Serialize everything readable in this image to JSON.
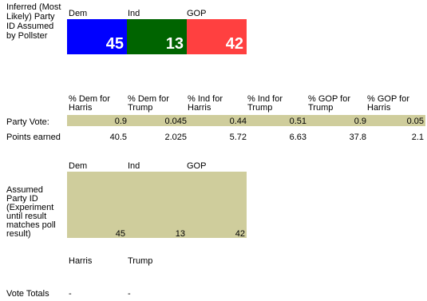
{
  "inferred_label": "Inferred (Most Likely) Party ID Assumed by Pollster",
  "parties": [
    {
      "label": "Dem",
      "value": "45",
      "color": "#0000ff"
    },
    {
      "label": "Ind",
      "value": "13",
      "color": "#006400"
    },
    {
      "label": "GOP",
      "value": "42",
      "color": "#ff4040"
    }
  ],
  "vote_headers": [
    "% Dem for Harris",
    "% Dem for Trump",
    "% Ind for Harris",
    "% Ind for Trump",
    "% GOP for Trump",
    "% GOP for Harris"
  ],
  "party_vote": {
    "label": "Party Vote:",
    "values": [
      "0.9",
      "0.045",
      "0.44",
      "0.51",
      "0.9",
      "0.05"
    ]
  },
  "points_earned": {
    "label": "Points earned",
    "values": [
      "40.5",
      "2.025",
      "5.72",
      "6.63",
      "37.8",
      "2.1"
    ]
  },
  "assumed": {
    "label": "Assumed Party ID (Experiment until result matches poll result)",
    "headers": [
      "Dem",
      "Ind",
      "GOP"
    ],
    "values": [
      "45",
      "13",
      "42"
    ]
  },
  "candidates": [
    "Harris",
    "Trump"
  ],
  "vote_totals": {
    "label": "Vote Totals",
    "values": [
      "-",
      "-"
    ]
  },
  "colors": {
    "khaki": "#cfcd9c",
    "dem": "#0000ff",
    "ind": "#006400",
    "gop": "#ff4040"
  }
}
